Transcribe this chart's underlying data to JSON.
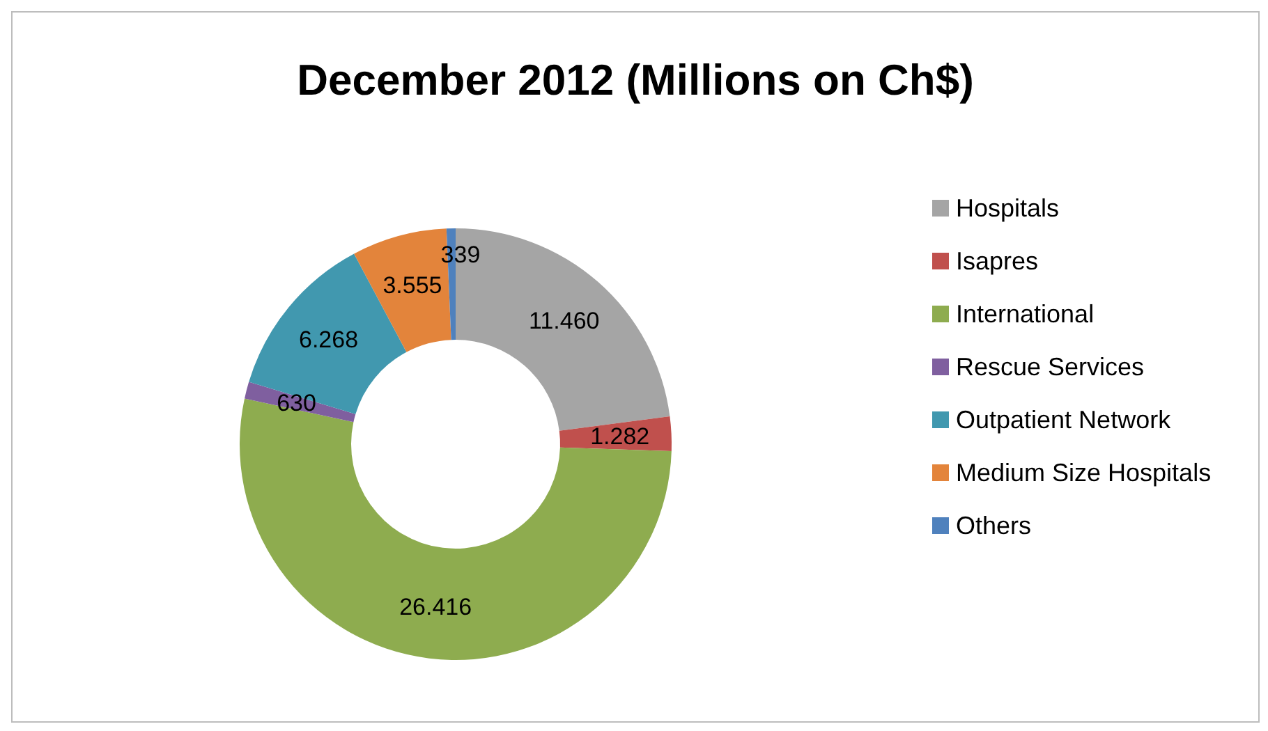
{
  "chart_data": {
    "type": "donut",
    "title": "December 2012 (Millions on Ch$)",
    "categories": [
      "Hospitals",
      "Isapres",
      "International",
      "Rescue Services",
      "Outpatient Network",
      "Medium Size Hospitals",
      "Others"
    ],
    "values": [
      11460,
      1282,
      26416,
      630,
      6268,
      3555,
      339
    ],
    "value_labels": [
      "11.460",
      "1.282",
      "26.416",
      "630",
      "6.268",
      "3.555",
      "339"
    ],
    "colors": [
      "#a5a5a5",
      "#c0504d",
      "#8eac4f",
      "#7f5f9f",
      "#4198af",
      "#e3843b",
      "#4f81bd"
    ],
    "legend": "right"
  }
}
